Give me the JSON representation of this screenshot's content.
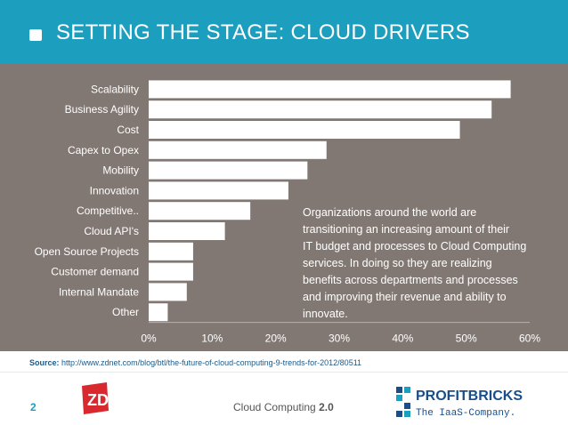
{
  "header": {
    "title": "SETTING THE STAGE: CLOUD DRIVERS"
  },
  "chart_data": {
    "type": "bar",
    "orientation": "horizontal",
    "categories": [
      "Scalability",
      "Business Agility",
      "Cost",
      "Capex to Opex",
      "Mobility",
      "Innovation",
      "Competitive..",
      "Cloud API's",
      "Open Source Projects",
      "Customer demand",
      "Internal Mandate",
      "Other"
    ],
    "values": [
      57,
      54,
      49,
      28,
      25,
      22,
      16,
      12,
      7,
      7,
      6,
      3
    ],
    "xlim": [
      0,
      60
    ],
    "xticks": [
      "0%",
      "10%",
      "20%",
      "30%",
      "40%",
      "50%",
      "60%"
    ],
    "grid": false,
    "annotation": "Organizations around the world are transitioning an increasing amount of their IT budget and processes to Cloud Computing services.  In doing so they are realizing benefits across departments and processes and improving their revenue and ability to innovate.",
    "annotation_lines": [
      "Organizations around the world are",
      "transitioning an increasing amount of their",
      "IT budget and processes to Cloud Computing",
      "services.  In doing so they are realizing",
      "benefits across departments and processes",
      "and improving their revenue and ability to",
      "innovate."
    ]
  },
  "source": {
    "label": "Source:",
    "url": "http://www.zdnet.com/blog/btl/the-future-of-cloud-computing-9-trends-for-2012/80511"
  },
  "footer": {
    "page_number": "2",
    "text": "Cloud Computing",
    "version": "2.0",
    "zdnet_logo": "ZDNet",
    "brand_logo_text": "PROFITBRICKS",
    "brand_tagline": "The IaaS-Company."
  },
  "colors": {
    "header": "#1c9fbe",
    "chart_bg": "#827873",
    "bar": "#ffffff",
    "zdnet_red": "#d8292f",
    "pb_blue": "#1a4e8a"
  }
}
